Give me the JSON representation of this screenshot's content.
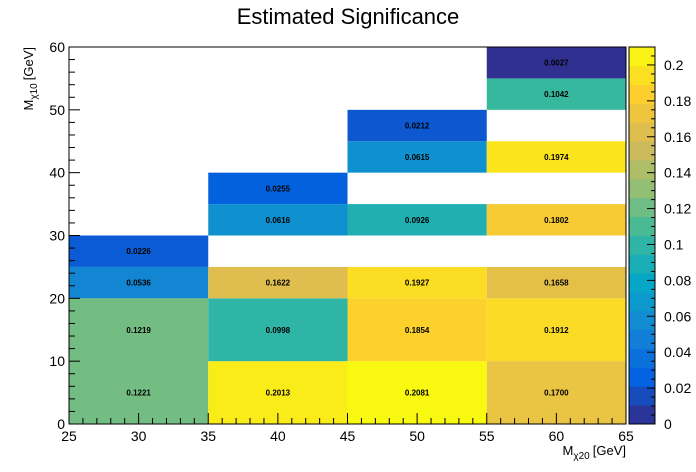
{
  "chart_data": {
    "type": "heatmap",
    "title": "Estimated Significance",
    "xlabel": {
      "main": "M",
      "sub": "χ20",
      "unit": "[GeV]"
    },
    "ylabel": {
      "main": "M",
      "sub": "χ10",
      "unit": "[GeV]"
    },
    "xlim": [
      25,
      65
    ],
    "ylim": [
      0,
      60
    ],
    "x_ticks": [
      25,
      30,
      35,
      40,
      45,
      50,
      55,
      60,
      65
    ],
    "y_ticks": [
      0,
      10,
      20,
      30,
      40,
      50,
      60
    ],
    "colorbar": {
      "range": [
        0,
        0.21
      ],
      "ticks": [
        0,
        0.02,
        0.04,
        0.06,
        0.08,
        0.1,
        0.12,
        0.14,
        0.16,
        0.18,
        0.2
      ],
      "tick_labels": [
        "0",
        "0.02",
        "0.04",
        "0.06",
        "0.08",
        "0.1",
        "0.12",
        "0.14",
        "0.16",
        "0.18",
        "0.2"
      ],
      "palette": [
        "#352a87",
        "#0363e1",
        "#1485d4",
        "#06a7c6",
        "#38b99e",
        "#92bf73",
        "#d9ba56",
        "#fcce2e",
        "#f9fb0e"
      ]
    },
    "cells": [
      {
        "x0": 25,
        "x1": 35,
        "y0": 0,
        "y1": 20,
        "value": 0.1221,
        "label": "0.1221",
        "ly": 5
      },
      {
        "x0": 25,
        "x1": 35,
        "y0": 0,
        "y1": 20,
        "value": 0.1219,
        "label": "0.1219",
        "ly": 15,
        "label_only": true
      },
      {
        "x0": 25,
        "x1": 35,
        "y0": 20,
        "y1": 25,
        "value": 0.0536,
        "label": "0.0536"
      },
      {
        "x0": 25,
        "x1": 35,
        "y0": 25,
        "y1": 30,
        "value": 0.0226,
        "label": "0.0226"
      },
      {
        "x0": 35,
        "x1": 45,
        "y0": 0,
        "y1": 10,
        "value": 0.2013,
        "label": "0.2013"
      },
      {
        "x0": 35,
        "x1": 45,
        "y0": 10,
        "y1": 20,
        "value": 0.0998,
        "label": "0.0998"
      },
      {
        "x0": 35,
        "x1": 45,
        "y0": 20,
        "y1": 25,
        "value": 0.1622,
        "label": "0.1622"
      },
      {
        "x0": 35,
        "x1": 45,
        "y0": 30,
        "y1": 35,
        "value": 0.0616,
        "label": "0.0616"
      },
      {
        "x0": 35,
        "x1": 45,
        "y0": 35,
        "y1": 40,
        "value": 0.0255,
        "label": "0.0255"
      },
      {
        "x0": 45,
        "x1": 55,
        "y0": 0,
        "y1": 10,
        "value": 0.2081,
        "label": "0.2081"
      },
      {
        "x0": 45,
        "x1": 55,
        "y0": 10,
        "y1": 20,
        "value": 0.1854,
        "label": "0.1854"
      },
      {
        "x0": 45,
        "x1": 55,
        "y0": 20,
        "y1": 25,
        "value": 0.1927,
        "label": "0.1927"
      },
      {
        "x0": 45,
        "x1": 55,
        "y0": 30,
        "y1": 35,
        "value": 0.0926,
        "label": "0.0926"
      },
      {
        "x0": 45,
        "x1": 55,
        "y0": 40,
        "y1": 45,
        "value": 0.0615,
        "label": "0.0615"
      },
      {
        "x0": 45,
        "x1": 55,
        "y0": 45,
        "y1": 50,
        "value": 0.0212,
        "label": "0.0212"
      },
      {
        "x0": 55,
        "x1": 65,
        "y0": 0,
        "y1": 10,
        "value": 0.17,
        "label": "0.1700"
      },
      {
        "x0": 55,
        "x1": 65,
        "y0": 10,
        "y1": 20,
        "value": 0.1912,
        "label": "0.1912"
      },
      {
        "x0": 55,
        "x1": 65,
        "y0": 20,
        "y1": 25,
        "value": 0.1658,
        "label": "0.1658"
      },
      {
        "x0": 55,
        "x1": 65,
        "y0": 30,
        "y1": 35,
        "value": 0.1802,
        "label": "0.1802"
      },
      {
        "x0": 55,
        "x1": 65,
        "y0": 40,
        "y1": 45,
        "value": 0.1974,
        "label": "0.1974"
      },
      {
        "x0": 55,
        "x1": 65,
        "y0": 50,
        "y1": 55,
        "value": 0.1042,
        "label": "0.1042"
      },
      {
        "x0": 55,
        "x1": 65,
        "y0": 55,
        "y1": 60,
        "value": 0.0027,
        "label": "0.0027"
      }
    ]
  }
}
